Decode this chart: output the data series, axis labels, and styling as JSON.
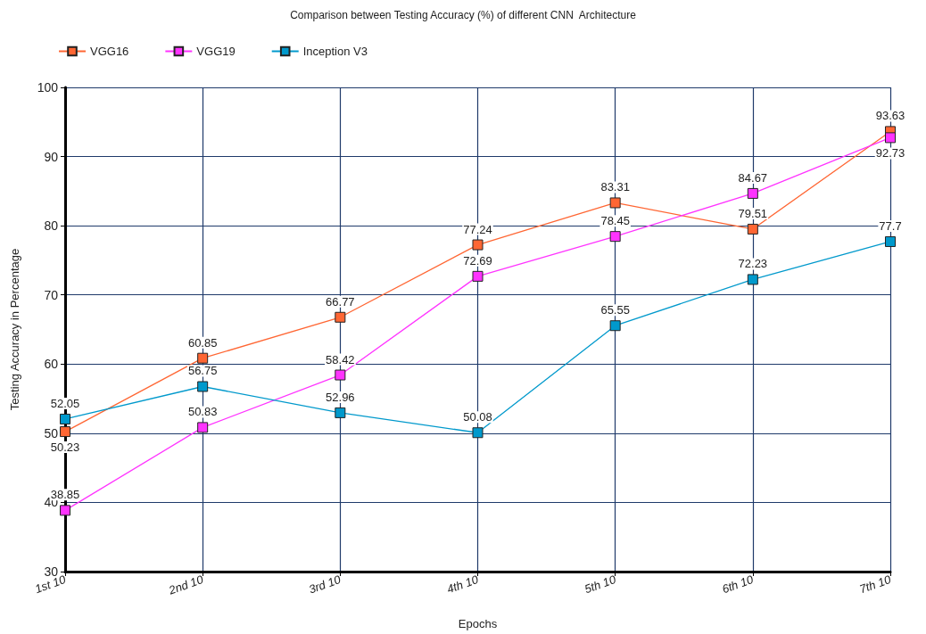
{
  "chart_data": {
    "type": "line",
    "title": "Comparison between Testing Accuracy (%) of different CNN  Architecture",
    "xlabel": "Epochs",
    "ylabel": "Testing Accuracy in Percentage",
    "categories": [
      "1st 10",
      "2nd 10",
      "3rd 10",
      "4th 10",
      "5th 10",
      "6th 10",
      "7th 10"
    ],
    "series": [
      {
        "name": "VGG16",
        "color": "#ff6633",
        "values": [
          50.23,
          60.85,
          66.77,
          77.24,
          83.31,
          79.51,
          93.63
        ]
      },
      {
        "name": "VGG19",
        "color": "#ff33ff",
        "values": [
          38.85,
          50.83,
          58.42,
          72.69,
          78.45,
          84.67,
          92.73
        ]
      },
      {
        "name": "Inception V3",
        "color": "#0099cc",
        "values": [
          52.05,
          56.75,
          52.96,
          50.08,
          65.55,
          72.23,
          77.7
        ]
      }
    ],
    "ylim": [
      30,
      100
    ],
    "yticks": [
      30,
      40,
      50,
      60,
      70,
      80,
      90,
      100
    ],
    "grid": true,
    "legend": "top left",
    "marker": "square",
    "line_style": "solid",
    "data_labels": true
  }
}
